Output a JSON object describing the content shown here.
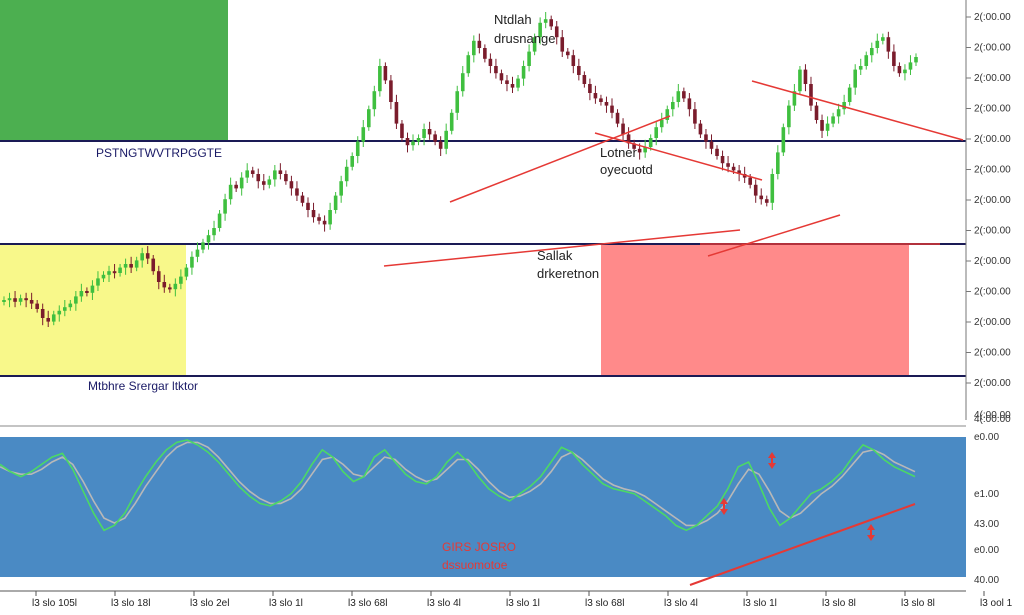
{
  "chart_data": [
    {
      "type": "candlestick",
      "panel": "price",
      "colors": {
        "up": "#3fbf3f",
        "down": "#7a1c2c",
        "trendline": "#e53935",
        "level_line": "#1a1a55"
      },
      "zones": [
        {
          "label": "",
          "color": "#4caf50"
        },
        {
          "label": "PSTNGTWVTRPGGTE",
          "color": "#ffffff"
        },
        {
          "label": "Mtbhre Srergar ltktor",
          "color": "#f8f88a"
        },
        {
          "label": "",
          "color": "#ff8a8a"
        }
      ],
      "annotations": [
        {
          "line1": "Ntdlah",
          "line2": "drusnange"
        },
        {
          "line1": "Lotner",
          "line2": "oyecuotd"
        },
        {
          "line1": "Sallak",
          "line2": "drkeretnon"
        }
      ],
      "price_axis": {
        "ticks": [
          "2(:00.00",
          "2(:00.00",
          "2(:00.00",
          "2(:00.00",
          "2(:00.00",
          "2(:00.00",
          "2(:00.00",
          "2(:00.00",
          "2(:00.00",
          "2(:00.00",
          "2(:00.00",
          "2(:00.00",
          "2(:00.00"
        ],
        "bottom_label": "4(:00.00"
      },
      "closes": [
        40,
        41,
        39,
        41,
        40,
        38,
        35,
        30,
        28,
        32,
        34,
        36,
        38,
        42,
        45,
        44,
        48,
        52,
        54,
        56,
        55,
        58,
        60,
        58,
        62,
        66,
        63,
        56,
        50,
        47,
        46,
        49,
        53,
        58,
        64,
        68,
        72,
        76,
        80,
        88,
        96,
        104,
        102,
        108,
        112,
        110,
        106,
        104,
        107,
        112,
        110,
        106,
        102,
        98,
        94,
        90,
        86,
        84,
        82,
        90,
        98,
        106,
        114,
        120,
        128,
        136,
        146,
        156,
        170,
        162,
        150,
        138,
        130,
        126,
        128,
        130,
        135,
        132,
        128,
        124,
        134,
        144,
        156,
        166,
        176,
        184,
        180,
        174,
        170,
        166,
        162,
        160,
        158,
        163,
        170,
        178,
        186,
        194,
        196,
        192,
        186,
        178,
        176,
        170,
        165,
        160,
        155,
        152,
        150,
        148,
        144,
        138,
        132,
        127,
        124,
        122,
        125,
        130,
        136,
        140,
        146,
        150,
        156,
        152,
        146,
        138,
        132,
        128,
        124,
        120,
        116,
        114,
        112,
        110,
        108,
        104,
        98,
        96,
        94,
        110,
        122,
        136,
        148,
        156,
        168,
        160,
        148,
        140,
        134,
        138,
        142,
        146,
        150,
        158,
        168,
        170,
        176,
        180,
        184,
        186,
        178,
        170,
        166,
        168,
        172,
        175
      ]
    },
    {
      "type": "line",
      "panel": "oscillator",
      "colors": {
        "background": "#4a8ac4",
        "fast": "#4cd964",
        "slow": "#b8b8b8",
        "trendline": "#e53935",
        "arrows": "#e53935"
      },
      "notes": [
        "GIRS JOSRO",
        "dssuomotoe"
      ],
      "ticks": [
        "4(:00.00",
        "e0.00",
        "e1.00",
        "43.00",
        "e0.00",
        "40.00"
      ],
      "series": [
        {
          "values": [
            80,
            74,
            70,
            74,
            80,
            86,
            89,
            76,
            58,
            40,
            26,
            30,
            40,
            56,
            70,
            82,
            92,
            98,
            100,
            96,
            90,
            82,
            72,
            62,
            54,
            48,
            46,
            50,
            56,
            66,
            80,
            92,
            86,
            74,
            66,
            70,
            86,
            92,
            82,
            72,
            66,
            64,
            70,
            82,
            90,
            82,
            70,
            60,
            54,
            50,
            56,
            62,
            70,
            82,
            94,
            90,
            80,
            72,
            64,
            60,
            58,
            56,
            50,
            44,
            38,
            30,
            26,
            30,
            38,
            46,
            60,
            78,
            82,
            64,
            44,
            30,
            36,
            46,
            56,
            60,
            66,
            74,
            86,
            96,
            92,
            84,
            78,
            74,
            70
          ]
        },
        {
          "values": [
            78,
            74,
            72,
            72,
            76,
            82,
            86,
            80,
            66,
            50,
            36,
            32,
            36,
            48,
            62,
            74,
            86,
            94,
            98,
            98,
            94,
            86,
            76,
            66,
            58,
            52,
            48,
            48,
            52,
            60,
            72,
            84,
            86,
            80,
            72,
            70,
            78,
            86,
            84,
            76,
            70,
            66,
            68,
            76,
            84,
            84,
            76,
            66,
            58,
            53,
            54,
            58,
            64,
            74,
            86,
            90,
            84,
            76,
            68,
            63,
            60,
            58,
            54,
            48,
            42,
            36,
            30,
            30,
            34,
            40,
            50,
            64,
            76,
            72,
            58,
            42,
            36,
            40,
            48,
            56,
            62,
            70,
            80,
            90,
            92,
            88,
            82,
            78,
            74
          ]
        }
      ]
    }
  ],
  "time_axis": [
    "l3 slo 105l",
    "l3 slo 18l",
    "l3 slo 2el",
    "l3 slo 1l",
    "l3 slo 68l",
    "l3 slo 4l",
    "l3 slo 1l",
    "l3 slo 68l",
    "l3 slo 4l",
    "l3 slo 1l",
    "l3 slo 8l",
    "l3 slo 8l",
    "l3 ool 1"
  ]
}
